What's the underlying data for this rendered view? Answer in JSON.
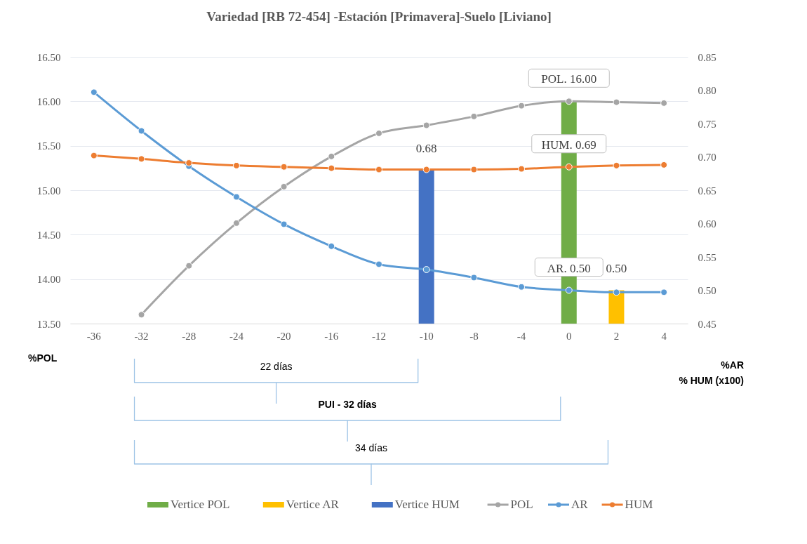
{
  "chart_data": {
    "type": "bar",
    "title": "Variedad  [RB 72-454] -Estación  [Primavera]-Suelo  [Liviano]",
    "categories": [
      "-36",
      "-32",
      "-28",
      "-24",
      "-20",
      "-16",
      "-12",
      "-10",
      "-8",
      "-4",
      "0",
      "2",
      "4"
    ],
    "series": [
      {
        "name": "Vertice POL",
        "color": "#70ad47",
        "values": [
          null,
          null,
          null,
          null,
          null,
          null,
          null,
          null,
          null,
          null,
          16.0,
          null,
          null
        ]
      },
      {
        "name": "Vertice AR",
        "axis": "y2",
        "color": "#ffc000",
        "values": [
          null,
          null,
          null,
          null,
          null,
          null,
          null,
          null,
          null,
          null,
          null,
          0.5,
          null
        ],
        "value_labels": [
          null,
          null,
          null,
          null,
          null,
          null,
          null,
          null,
          null,
          null,
          null,
          "0.50",
          null
        ]
      },
      {
        "name": "Vertice HUM",
        "axis": "y2",
        "color": "#4472c4",
        "values": [
          null,
          null,
          null,
          null,
          null,
          null,
          null,
          0.68,
          null,
          null,
          null,
          null,
          null
        ],
        "value_labels": [
          null,
          null,
          null,
          null,
          null,
          null,
          null,
          "0.68",
          null,
          null,
          null,
          null,
          null
        ]
      },
      {
        "name": "POL",
        "type": "line",
        "color": "#a5a5a5",
        "values": [
          null,
          13.6,
          14.15,
          14.63,
          15.04,
          15.38,
          15.64,
          15.73,
          15.83,
          15.95,
          16.0,
          15.99,
          15.98
        ],
        "value_labels": [
          null,
          null,
          null,
          null,
          null,
          null,
          null,
          null,
          null,
          null,
          "POL.  16.00",
          null,
          null
        ]
      },
      {
        "name": "AR",
        "type": "line",
        "axis": "y2",
        "color": "#5b9bd5",
        "values": [
          0.797,
          0.739,
          0.686,
          0.64,
          0.599,
          0.566,
          0.539,
          0.531,
          0.519,
          0.505,
          0.5,
          0.497,
          0.497
        ],
        "value_labels": [
          null,
          null,
          null,
          null,
          null,
          null,
          null,
          null,
          null,
          null,
          "AR.  0.50",
          null,
          null
        ]
      },
      {
        "name": "HUM",
        "type": "line",
        "axis": "y2",
        "color": "#ed7d31",
        "values": [
          0.702,
          0.697,
          0.691,
          0.687,
          0.685,
          0.683,
          0.681,
          0.681,
          0.681,
          0.682,
          0.685,
          0.687,
          0.688
        ],
        "value_labels": [
          null,
          null,
          null,
          null,
          null,
          null,
          null,
          null,
          null,
          null,
          "HUM.  0.69",
          null,
          null
        ]
      }
    ],
    "ylabel": "%POL",
    "y2label": "%AR\n% HUM (x100)",
    "ylim": [
      13.5,
      16.5
    ],
    "yticks": [
      {
        "value": 13.5,
        "label": "13.50"
      },
      {
        "value": 14.0,
        "label": "14.00"
      },
      {
        "value": 14.5,
        "label": "14.50"
      },
      {
        "value": 15.0,
        "label": "15.00"
      },
      {
        "value": 15.5,
        "label": "15.50"
      },
      {
        "value": 16.0,
        "label": "16.00"
      },
      {
        "value": 16.5,
        "label": "16.50"
      }
    ],
    "y2lim": [
      0.45,
      0.85
    ],
    "y2ticks": [
      0.45,
      {
        "value": 0.5,
        "label": "0.50"
      },
      0.55,
      {
        "value": 0.6,
        "label": "0.60"
      },
      0.65,
      {
        "value": 0.7,
        "label": "0.70"
      },
      0.75,
      {
        "value": 0.8,
        "label": "0.80"
      },
      0.85
    ],
    "annotations": [
      "22 días",
      "PUI - 32 días",
      "34 días"
    ],
    "grid": "y",
    "legend": "bottom",
    "marker": "circle"
  }
}
